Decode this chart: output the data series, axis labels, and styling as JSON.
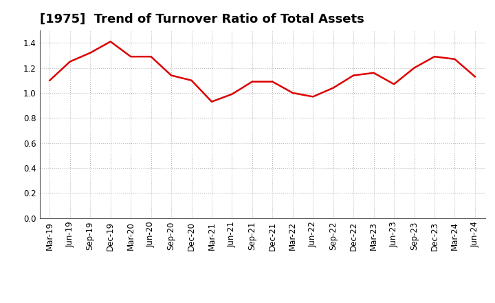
{
  "title": "[1975]  Trend of Turnover Ratio of Total Assets",
  "x_labels": [
    "Mar-19",
    "Jun-19",
    "Sep-19",
    "Dec-19",
    "Mar-20",
    "Jun-20",
    "Sep-20",
    "Dec-20",
    "Mar-21",
    "Jun-21",
    "Sep-21",
    "Dec-21",
    "Mar-22",
    "Jun-22",
    "Sep-22",
    "Dec-22",
    "Mar-23",
    "Jun-23",
    "Sep-23",
    "Dec-23",
    "Mar-24",
    "Jun-24"
  ],
  "y_values": [
    1.1,
    1.25,
    1.32,
    1.41,
    1.29,
    1.29,
    1.14,
    1.1,
    0.93,
    0.99,
    1.09,
    1.09,
    1.0,
    0.97,
    1.04,
    1.14,
    1.16,
    1.07,
    1.2,
    1.29,
    1.27,
    1.13
  ],
  "line_color": "#dd0000",
  "line_width": 1.8,
  "ylim": [
    0.0,
    1.5
  ],
  "yticks": [
    0.0,
    0.2,
    0.4,
    0.6,
    0.8,
    1.0,
    1.2,
    1.4
  ],
  "grid_color": "#bbbbbb",
  "background_color": "#ffffff",
  "title_fontsize": 13,
  "tick_fontsize": 8.5
}
